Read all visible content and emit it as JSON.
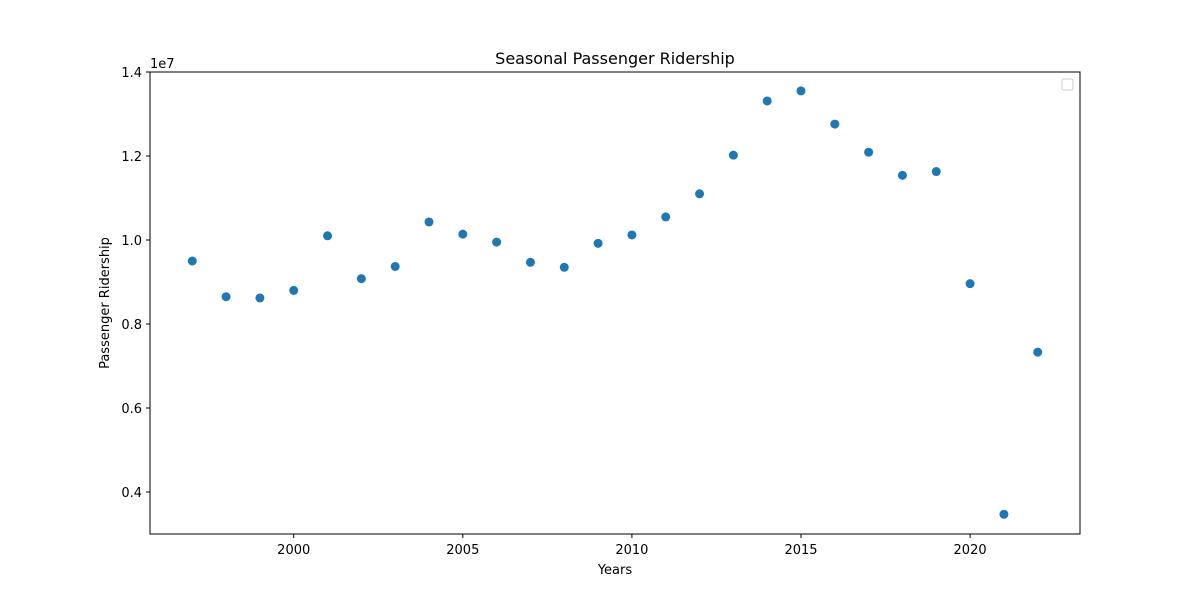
{
  "chart_data": {
    "type": "scatter",
    "title": "Seasonal Passenger Ridership",
    "xlabel": "Years",
    "ylabel": "Passenger Ridership",
    "y_offset_label": "1e7",
    "xlim": [
      1995.75,
      2023.25
    ],
    "ylim": [
      3.0,
      14.0
    ],
    "x_ticks": [
      2000,
      2005,
      2010,
      2015,
      2020
    ],
    "x_tick_labels": [
      "2000",
      "2005",
      "2010",
      "2015",
      "2020"
    ],
    "y_ticks": [
      4,
      6,
      8,
      10,
      12,
      14
    ],
    "y_tick_labels": [
      "0.4",
      "0.6",
      "0.8",
      "1.0",
      "1.2",
      "1.4"
    ],
    "grid": false,
    "legend": "top-right",
    "marker_color": "#1f77b4",
    "series": [
      {
        "x": [
          1997,
          1998,
          1999,
          2000,
          2001,
          2002,
          2003,
          2004,
          2005,
          2006,
          2007,
          2008,
          2009,
          2010,
          2011,
          2012,
          2013,
          2014,
          2015,
          2016,
          2017,
          2018,
          2019,
          2020,
          2021,
          2022
        ],
        "y": [
          9.5,
          8.65,
          8.62,
          8.8,
          10.1,
          9.08,
          9.37,
          10.43,
          10.14,
          9.95,
          9.47,
          9.35,
          9.92,
          10.12,
          10.55,
          11.1,
          12.02,
          13.31,
          13.55,
          12.76,
          12.09,
          11.54,
          11.63,
          8.96,
          3.47,
          7.33
        ]
      }
    ]
  }
}
